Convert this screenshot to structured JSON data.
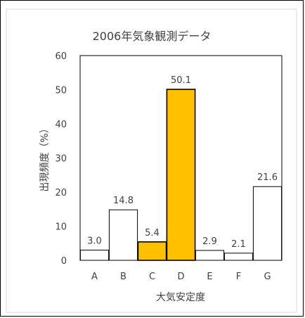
{
  "chart_data": {
    "type": "bar",
    "title": "2006年気象観測データ",
    "xlabel": "大気安定度",
    "ylabel": "出現頻度（%）",
    "categories": [
      "A",
      "B",
      "C",
      "D",
      "E",
      "F",
      "G"
    ],
    "values": [
      3.0,
      14.8,
      5.4,
      50.1,
      2.9,
      2.1,
      21.6
    ],
    "value_labels": [
      "3.0",
      "14.8",
      "5.4",
      "50.1",
      "2.9",
      "2.1",
      "21.6"
    ],
    "ylim": [
      0,
      60
    ],
    "yticks": [
      "0",
      "10",
      "20",
      "30",
      "40",
      "50",
      "60"
    ],
    "grid": false,
    "legend": "none",
    "highlighted_categories": [
      "C",
      "D"
    ],
    "colors": {
      "highlight_fill": "#FFC000",
      "default_fill": "#FFFFFF",
      "bar_stroke": "#000000",
      "text": "#404040",
      "chart_border": "#D9D9D9"
    }
  }
}
